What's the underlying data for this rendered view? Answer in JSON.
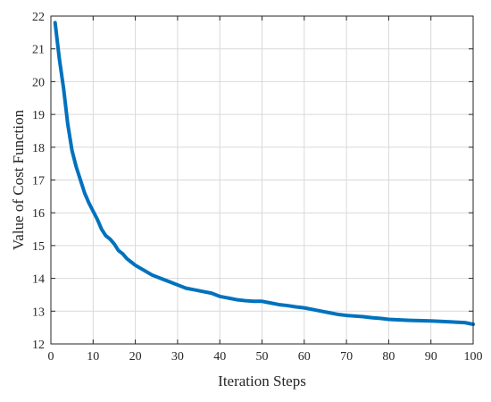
{
  "chart_data": {
    "type": "line",
    "title": "",
    "xlabel": "Iteration Steps",
    "ylabel": "Value of Cost Function",
    "xlim": [
      0,
      100
    ],
    "ylim": [
      12,
      22
    ],
    "xticks": [
      "0",
      "10",
      "20",
      "30",
      "40",
      "50",
      "60",
      "70",
      "80",
      "90",
      "100"
    ],
    "yticks": [
      "12",
      "13",
      "14",
      "15",
      "16",
      "17",
      "18",
      "19",
      "20",
      "21",
      "22"
    ],
    "grid": true,
    "legend": "none",
    "colors": {
      "series": "#0072BD"
    },
    "series": [
      {
        "x": [
          1,
          2,
          3,
          4,
          5,
          6,
          7,
          8,
          9,
          10,
          11,
          12,
          13,
          14,
          15,
          16,
          17,
          18,
          19,
          20,
          22,
          24,
          26,
          28,
          30,
          32,
          34,
          36,
          38,
          40,
          42,
          44,
          46,
          48,
          50,
          52,
          54,
          56,
          58,
          60,
          62,
          64,
          66,
          68,
          70,
          72,
          74,
          76,
          78,
          80,
          85,
          90,
          95,
          98,
          100
        ],
        "values": [
          21.8,
          20.7,
          19.8,
          18.7,
          17.9,
          17.4,
          17.0,
          16.6,
          16.3,
          16.05,
          15.8,
          15.5,
          15.3,
          15.2,
          15.05,
          14.85,
          14.75,
          14.6,
          14.5,
          14.4,
          14.25,
          14.1,
          14.0,
          13.9,
          13.8,
          13.7,
          13.65,
          13.6,
          13.55,
          13.45,
          13.4,
          13.35,
          13.32,
          13.3,
          13.3,
          13.25,
          13.2,
          13.17,
          13.13,
          13.1,
          13.05,
          13.0,
          12.95,
          12.9,
          12.87,
          12.85,
          12.83,
          12.8,
          12.78,
          12.75,
          12.72,
          12.7,
          12.67,
          12.65,
          12.6
        ]
      }
    ]
  }
}
